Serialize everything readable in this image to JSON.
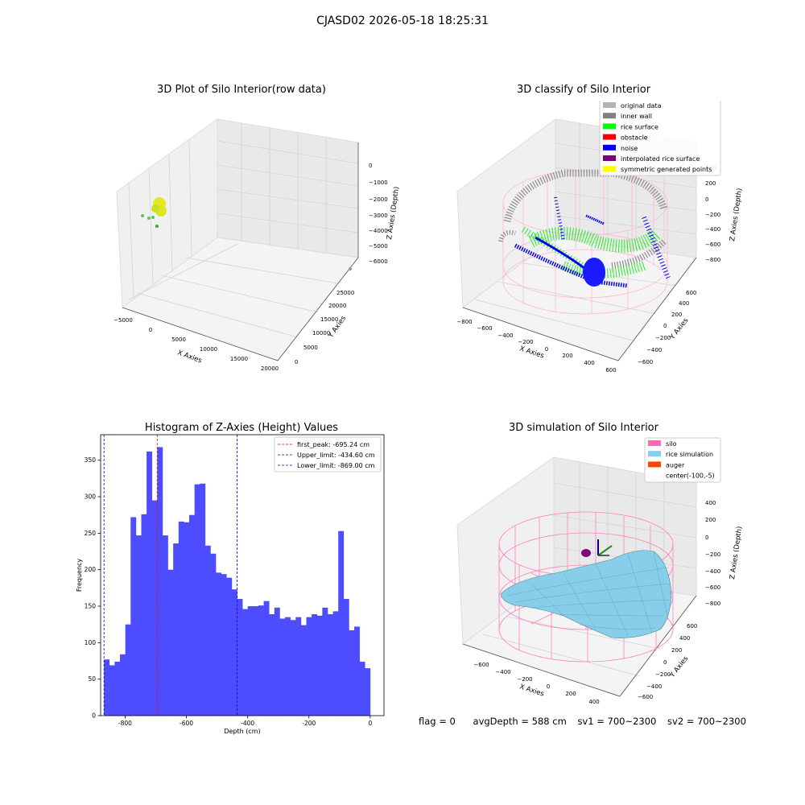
{
  "suptitle": "CJASD02 2026-05-18 18:25:31",
  "panels": {
    "raw": {
      "title": "3D Plot of Silo Interior(row data)",
      "xlabel": "X Axies",
      "ylabel": "Y Axies",
      "zlabel": "Z Axies (Depth)",
      "xticks": [
        "−5000",
        "0",
        "5000",
        "10000",
        "15000",
        "20000"
      ],
      "yticks": [
        "0",
        "5000",
        "10000",
        "15000",
        "20000",
        "25000"
      ],
      "zticks": [
        "0",
        "−1000",
        "−2000",
        "−3000",
        "−4000",
        "−5000",
        "−6000"
      ]
    },
    "classify": {
      "title": "3D classify of Silo Interior",
      "xlabel": "X Axies",
      "ylabel": "Y Axies",
      "zlabel": "Z Axies (Depth)",
      "xticks": [
        "−800",
        "−600",
        "−400",
        "−200",
        "0",
        "200",
        "400",
        "600"
      ],
      "yticks": [
        "−600",
        "−400",
        "−200",
        "0",
        "200",
        "400",
        "600"
      ],
      "zticks": [
        "400",
        "200",
        "0",
        "−200",
        "−400",
        "−600",
        "−800"
      ],
      "legend": [
        {
          "label": "original data",
          "color": "#b3b3b3"
        },
        {
          "label": "inner wall",
          "color": "#808080"
        },
        {
          "label": "rice surface",
          "color": "#00ff00"
        },
        {
          "label": "obstacle",
          "color": "#ff0000"
        },
        {
          "label": "noise",
          "color": "#0000ff"
        },
        {
          "label": "interpolated rice surface",
          "color": "#800080"
        },
        {
          "label": "symmetric generated points",
          "color": "#ffff00"
        }
      ]
    },
    "sim": {
      "title": "3D simulation of Silo Interior",
      "xlabel": "X Axies",
      "ylabel": "Y Axies",
      "zlabel": "Z Axies (Depth)",
      "xticks": [
        "−600",
        "−400",
        "−200",
        "0",
        "200",
        "400"
      ],
      "yticks": [
        "−600",
        "−400",
        "−200",
        "0",
        "200",
        "400",
        "600"
      ],
      "zticks": [
        "400",
        "200",
        "0",
        "−200",
        "−400",
        "−600",
        "−800"
      ],
      "legend": [
        {
          "label": "silo",
          "color": "#ff69b4"
        },
        {
          "label": "rice simulation",
          "color": "#87ceeb"
        },
        {
          "label": "auger",
          "color": "#ff4500"
        },
        {
          "label": "center(-100,-5)",
          "color": ""
        }
      ]
    }
  },
  "chart_data": [
    {
      "type": "bar",
      "title": "Histogram of Z-Axies (Height) Values",
      "xlabel": "Depth (cm)",
      "ylabel": "Frequency",
      "color": "#4d4dff",
      "xlim": [
        -880,
        45
      ],
      "ylim": [
        0,
        385
      ],
      "xticks": [
        -800,
        -600,
        -400,
        -200,
        0
      ],
      "yticks": [
        0,
        50,
        100,
        150,
        200,
        250,
        300,
        350
      ],
      "bin_start": -869,
      "bin_width": 17.38,
      "values": [
        77,
        69,
        74,
        84,
        125,
        272,
        247,
        276,
        362,
        295,
        368,
        247,
        200,
        236,
        266,
        265,
        275,
        317,
        318,
        233,
        222,
        196,
        194,
        189,
        173,
        160,
        146,
        150,
        150,
        151,
        157,
        139,
        148,
        133,
        135,
        131,
        135,
        124,
        135,
        139,
        137,
        148,
        139,
        143,
        253,
        160,
        117,
        122,
        74,
        65
      ],
      "vlines": [
        {
          "x": -695.24,
          "color": "#ff0000",
          "label": "first_peak: -695.24 cm"
        },
        {
          "x": -434.6,
          "color": "#0000cc",
          "label": "Upper_limit: -434.60 cm"
        },
        {
          "x": -869.0,
          "color": "#0000cc",
          "label": "Lower_limit: -869.00 cm"
        }
      ],
      "legend": "top-right"
    }
  ],
  "footer": {
    "flag": "flag = 0",
    "avg": "avgDepth = 588 cm",
    "sv1": "sv1 = 700~2300",
    "sv2": "sv2 = 700~2300"
  }
}
